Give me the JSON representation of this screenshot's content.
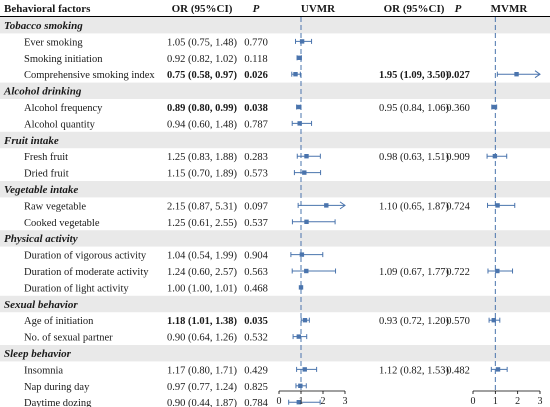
{
  "headers": {
    "factor": "Behavioral factors",
    "or_uvmr": "OR (95%CI)",
    "p_uvmr": "P",
    "uvmr": "UVMR",
    "or_mvmr": "OR (95%CI)",
    "p_mvmr": "P",
    "mvmr": "MVMR"
  },
  "colors": {
    "marker": "#4a74ad",
    "refline": "#4a74ad",
    "rule": "#000000"
  },
  "chart_data": {
    "type": "forest",
    "reference_value": 1,
    "panels": [
      {
        "name": "UVMR",
        "xlim": [
          0,
          3
        ],
        "ticks": [
          0,
          1,
          2,
          3
        ]
      },
      {
        "name": "MVMR",
        "xlim": [
          0,
          3
        ],
        "ticks": [
          0,
          1,
          2,
          3
        ]
      }
    ],
    "groups": [
      {
        "name": "Tobacco smoking",
        "rows": [
          {
            "label": "Ever smoking",
            "uv": {
              "or": 1.05,
              "lo": 0.75,
              "hi": 1.48,
              "text": "1.05 (0.75, 1.48)",
              "p": "0.770",
              "bold": false
            }
          },
          {
            "label": "Smoking initiation",
            "uv": {
              "or": 0.92,
              "lo": 0.82,
              "hi": 1.02,
              "text": "0.92 (0.82, 1.02)",
              "p": "0.118",
              "bold": false
            }
          },
          {
            "label": "Comprehensive smoking index",
            "uv": {
              "or": 0.75,
              "lo": 0.58,
              "hi": 0.97,
              "text": "0.75 (0.58, 0.97)",
              "p": "0.026",
              "bold": true
            },
            "mv": {
              "or": 1.95,
              "lo": 1.09,
              "hi": 3.5,
              "text": "1.95 (1.09, 3.50)",
              "p": "0.027",
              "bold": true
            }
          }
        ]
      },
      {
        "name": "Alcohol drinking",
        "rows": [
          {
            "label": "Alcohol frequency",
            "uv": {
              "or": 0.89,
              "lo": 0.8,
              "hi": 0.99,
              "text": "0.89 (0.80, 0.99)",
              "p": "0.038",
              "bold": true
            },
            "mv": {
              "or": 0.95,
              "lo": 0.84,
              "hi": 1.06,
              "text": "0.95 (0.84, 1.06)",
              "p": "0.360",
              "bold": false
            }
          },
          {
            "label": "Alcohol quantity",
            "uv": {
              "or": 0.94,
              "lo": 0.6,
              "hi": 1.48,
              "text": "0.94 (0.60, 1.48)",
              "p": "0.787",
              "bold": false
            }
          }
        ]
      },
      {
        "name": "Fruit intake",
        "rows": [
          {
            "label": "Fresh fruit",
            "uv": {
              "or": 1.25,
              "lo": 0.83,
              "hi": 1.88,
              "text": "1.25 (0.83, 1.88)",
              "p": "0.283",
              "bold": false
            },
            "mv": {
              "or": 0.98,
              "lo": 0.63,
              "hi": 1.51,
              "text": "0.98 (0.63, 1.51)",
              "p": "0.909",
              "bold": false
            }
          },
          {
            "label": "Dried fruit",
            "uv": {
              "or": 1.15,
              "lo": 0.7,
              "hi": 1.89,
              "text": "1.15 (0.70, 1.89)",
              "p": "0.573",
              "bold": false
            }
          }
        ]
      },
      {
        "name": "Vegetable intake",
        "rows": [
          {
            "label": "Raw vegetable",
            "uv": {
              "or": 2.15,
              "lo": 0.87,
              "hi": 5.31,
              "text": "2.15 (0.87, 5.31)",
              "p": "0.097",
              "bold": false
            },
            "mv": {
              "or": 1.1,
              "lo": 0.65,
              "hi": 1.87,
              "text": "1.10 (0.65, 1.87)",
              "p": "0.724",
              "bold": false
            }
          },
          {
            "label": "Cooked vegetable",
            "uv": {
              "or": 1.25,
              "lo": 0.61,
              "hi": 2.55,
              "text": "1.25 (0.61, 2.55)",
              "p": "0.537",
              "bold": false
            }
          }
        ]
      },
      {
        "name": "Physical activity",
        "rows": [
          {
            "label": "Duration of vigorous activity",
            "uv": {
              "or": 1.04,
              "lo": 0.54,
              "hi": 1.99,
              "text": "1.04 (0.54, 1.99)",
              "p": "0.904",
              "bold": false
            }
          },
          {
            "label": "Duration of moderate activity",
            "uv": {
              "or": 1.24,
              "lo": 0.6,
              "hi": 2.57,
              "text": "1.24 (0.60, 2.57)",
              "p": "0.563",
              "bold": false
            },
            "mv": {
              "or": 1.09,
              "lo": 0.67,
              "hi": 1.77,
              "text": "1.09 (0.67, 1.77)",
              "p": "0.722",
              "bold": false
            }
          },
          {
            "label": "Duration of light activity",
            "uv": {
              "or": 1.0,
              "lo": 1.0,
              "hi": 1.01,
              "text": "1.00 (1.00, 1.01)",
              "p": "0.468",
              "bold": false
            }
          }
        ]
      },
      {
        "name": "Sexual behavior",
        "rows": [
          {
            "label": "Age of initiation",
            "uv": {
              "or": 1.18,
              "lo": 1.01,
              "hi": 1.38,
              "text": "1.18 (1.01, 1.38)",
              "p": "0.035",
              "bold": true
            },
            "mv": {
              "or": 0.93,
              "lo": 0.72,
              "hi": 1.2,
              "text": "0.93 (0.72, 1.20)",
              "p": "0.570",
              "bold": false
            }
          },
          {
            "label": "No. of sexual partner",
            "uv": {
              "or": 0.9,
              "lo": 0.64,
              "hi": 1.26,
              "text": "0.90 (0.64, 1.26)",
              "p": "0.532",
              "bold": false
            }
          }
        ]
      },
      {
        "name": "Sleep behavior",
        "rows": [
          {
            "label": "Insomnia",
            "uv": {
              "or": 1.17,
              "lo": 0.8,
              "hi": 1.71,
              "text": "1.17 (0.80, 1.71)",
              "p": "0.429",
              "bold": false
            },
            "mv": {
              "or": 1.12,
              "lo": 0.82,
              "hi": 1.53,
              "text": "1.12 (0.82, 1.53)",
              "p": "0.482",
              "bold": false
            }
          },
          {
            "label": "Nap during day",
            "uv": {
              "or": 0.97,
              "lo": 0.77,
              "hi": 1.24,
              "text": "0.97 (0.77, 1.24)",
              "p": "0.825",
              "bold": false
            }
          },
          {
            "label": "Daytime dozing",
            "uv": {
              "or": 0.9,
              "lo": 0.44,
              "hi": 1.87,
              "text": "0.90 (0.44, 1.87)",
              "p": "0.784",
              "bold": false
            }
          }
        ]
      }
    ]
  }
}
